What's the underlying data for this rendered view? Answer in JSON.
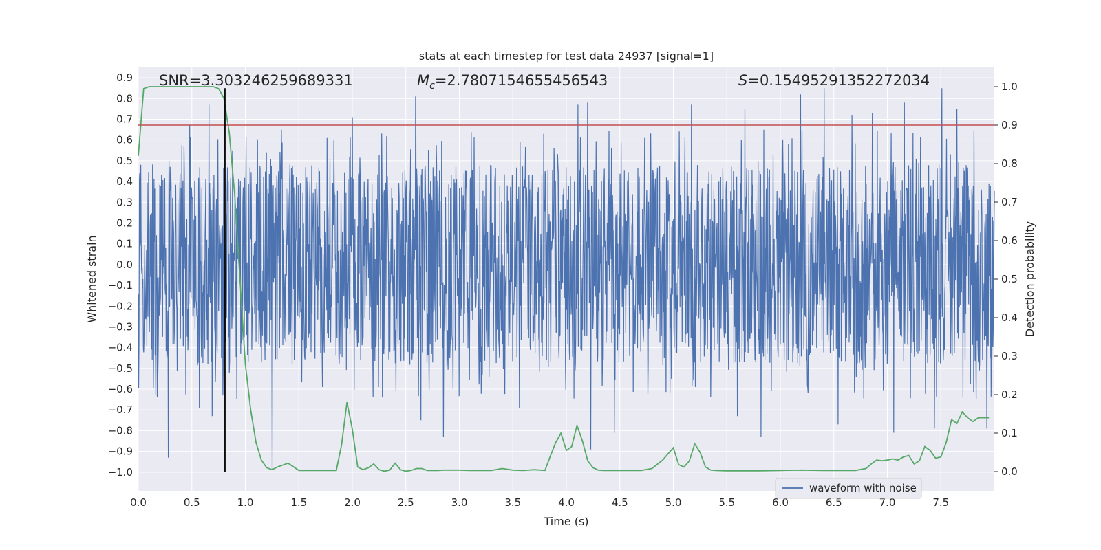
{
  "chart_data": {
    "type": "line",
    "title": "stats at each timestep for test data 24937 [signal=1]",
    "xlabel": "Time (s)",
    "ylabel_left": "Whitened strain",
    "ylabel_right": "Detection probability",
    "xlim": [
      0.0,
      8.0
    ],
    "ylim_left": [
      -1.09,
      0.95
    ],
    "ylim_right": [
      -0.05,
      1.05
    ],
    "x_ticks": [
      0.0,
      0.5,
      1.0,
      1.5,
      2.0,
      2.5,
      3.0,
      3.5,
      4.0,
      4.5,
      5.0,
      5.5,
      6.0,
      6.5,
      7.0,
      7.5
    ],
    "x_tick_labels": [
      "0.0",
      "0.5",
      "1.0",
      "1.5",
      "2.0",
      "2.5",
      "3.0",
      "3.5",
      "4.0",
      "4.5",
      "5.0",
      "5.5",
      "6.0",
      "6.5",
      "7.0",
      "7.5"
    ],
    "y_left_ticks": [
      0.9,
      0.8,
      0.7,
      0.6,
      0.5,
      0.4,
      0.3,
      0.2,
      0.1,
      0.0,
      -0.1,
      -0.2,
      -0.3,
      -0.4,
      -0.5,
      -0.6,
      -0.7,
      -0.8,
      -0.9,
      -1.0
    ],
    "y_left_tick_labels": [
      "0.9",
      "0.8",
      "0.7",
      "0.6",
      "0.5",
      "0.4",
      "0.3",
      "0.2",
      "0.1",
      "0.0",
      "−0.1",
      "−0.2",
      "−0.3",
      "−0.4",
      "−0.5",
      "−0.6",
      "−0.7",
      "−0.8",
      "−0.9",
      "−1.0"
    ],
    "y_right_ticks": [
      1.0,
      0.9,
      0.8,
      0.7,
      0.6,
      0.5,
      0.4,
      0.3,
      0.2,
      0.1,
      0.0
    ],
    "y_right_tick_labels": [
      "1.0",
      "0.9",
      "0.8",
      "0.7",
      "0.6",
      "0.5",
      "0.4",
      "0.3",
      "0.2",
      "0.1",
      "0.0"
    ],
    "annotations": {
      "snr": "SNR=3.303246259689331",
      "mc_symbol": "M",
      "mc_sub": "c",
      "mc_value": "=2.7807154655456543",
      "s_symbol": "S",
      "s_value": "=0.15495291352272034"
    },
    "threshold_right": 0.9,
    "event_time": 0.81,
    "event_line_left_range": [
      -1.0,
      0.85
    ],
    "waveform": {
      "name": "waveform with noise",
      "color": "#4c72b0",
      "sample_count": 2400,
      "core_amplitude": 0.27,
      "peak_spikes": [
        [
          0.28,
          -0.93
        ],
        [
          0.48,
          0.67
        ],
        [
          0.57,
          -0.69
        ],
        [
          0.66,
          0.77
        ],
        [
          0.69,
          -0.73
        ],
        [
          0.79,
          -0.63
        ],
        [
          0.88,
          0.55
        ],
        [
          1.25,
          -0.99
        ],
        [
          1.72,
          -0.59
        ],
        [
          2.0,
          0.71
        ],
        [
          2.28,
          -0.64
        ],
        [
          2.59,
          0.81
        ],
        [
          2.64,
          -0.75
        ],
        [
          2.85,
          -0.83
        ],
        [
          3.56,
          -0.69
        ],
        [
          4.11,
          0.77
        ],
        [
          4.2,
          0.78
        ],
        [
          4.23,
          -0.89
        ],
        [
          4.45,
          -0.81
        ],
        [
          5.17,
          0.77
        ],
        [
          5.6,
          -0.73
        ],
        [
          5.67,
          0.75
        ],
        [
          5.82,
          -0.83
        ],
        [
          6.19,
          0.82
        ],
        [
          6.41,
          0.85
        ],
        [
          6.54,
          -0.77
        ],
        [
          6.67,
          0.72
        ],
        [
          6.86,
          0.73
        ],
        [
          7.06,
          -0.81
        ],
        [
          7.16,
          0.78
        ],
        [
          7.44,
          -0.79
        ],
        [
          7.51,
          0.85
        ],
        [
          7.65,
          0.75
        ],
        [
          7.93,
          -0.79
        ]
      ]
    },
    "probability": {
      "color": "#55a868",
      "x": [
        0.0,
        0.05,
        0.1,
        0.2,
        0.3,
        0.4,
        0.5,
        0.6,
        0.7,
        0.75,
        0.8,
        0.85,
        0.9,
        0.95,
        1.0,
        1.05,
        1.1,
        1.15,
        1.2,
        1.25,
        1.3,
        1.4,
        1.5,
        1.6,
        1.7,
        1.8,
        1.85,
        1.9,
        1.95,
        2.0,
        2.05,
        2.1,
        2.15,
        2.2,
        2.25,
        2.3,
        2.35,
        2.4,
        2.45,
        2.5,
        2.55,
        2.6,
        2.65,
        2.7,
        2.75,
        2.8,
        2.85,
        2.9,
        3.0,
        3.1,
        3.2,
        3.3,
        3.4,
        3.5,
        3.6,
        3.7,
        3.8,
        3.85,
        3.9,
        3.95,
        4.0,
        4.05,
        4.1,
        4.15,
        4.2,
        4.25,
        4.3,
        4.35,
        4.4,
        4.5,
        4.6,
        4.7,
        4.8,
        4.9,
        4.95,
        5.0,
        5.05,
        5.1,
        5.15,
        5.2,
        5.25,
        5.3,
        5.35,
        5.4,
        5.5,
        5.6,
        5.8,
        6.0,
        6.2,
        6.4,
        6.5,
        6.6,
        6.7,
        6.8,
        6.85,
        6.9,
        6.95,
        7.0,
        7.05,
        7.1,
        7.15,
        7.2,
        7.25,
        7.3,
        7.35,
        7.4,
        7.45,
        7.5,
        7.55,
        7.6,
        7.65,
        7.7,
        7.75,
        7.8,
        7.85,
        7.9,
        7.95
      ],
      "y": [
        0.82,
        0.995,
        1.0,
        1.0,
        1.0,
        1.0,
        1.0,
        1.0,
        1.0,
        0.995,
        0.97,
        0.88,
        0.72,
        0.5,
        0.28,
        0.16,
        0.075,
        0.03,
        0.01,
        0.005,
        0.012,
        0.022,
        0.003,
        0.003,
        0.003,
        0.003,
        0.003,
        0.07,
        0.18,
        0.11,
        0.012,
        0.005,
        0.01,
        0.02,
        0.005,
        0.001,
        0.004,
        0.022,
        0.005,
        0.001,
        0.003,
        0.008,
        0.008,
        0.003,
        0.003,
        0.003,
        0.004,
        0.004,
        0.004,
        0.003,
        0.003,
        0.003,
        0.008,
        0.004,
        0.003,
        0.005,
        0.003,
        0.04,
        0.075,
        0.1,
        0.055,
        0.065,
        0.12,
        0.08,
        0.028,
        0.01,
        0.004,
        0.003,
        0.003,
        0.003,
        0.003,
        0.003,
        0.008,
        0.03,
        0.046,
        0.062,
        0.018,
        0.012,
        0.028,
        0.072,
        0.05,
        0.012,
        0.004,
        0.003,
        0.002,
        0.002,
        0.002,
        0.003,
        0.004,
        0.003,
        0.003,
        0.003,
        0.003,
        0.008,
        0.02,
        0.03,
        0.028,
        0.03,
        0.033,
        0.03,
        0.038,
        0.042,
        0.02,
        0.028,
        0.065,
        0.055,
        0.035,
        0.038,
        0.075,
        0.135,
        0.125,
        0.155,
        0.14,
        0.13,
        0.14,
        0.14,
        0.14
      ]
    },
    "threshold_color": "#c44e52",
    "event_line_color": "#000000",
    "legend": {
      "label": "waveform with noise",
      "placement": "bottom-right"
    }
  }
}
